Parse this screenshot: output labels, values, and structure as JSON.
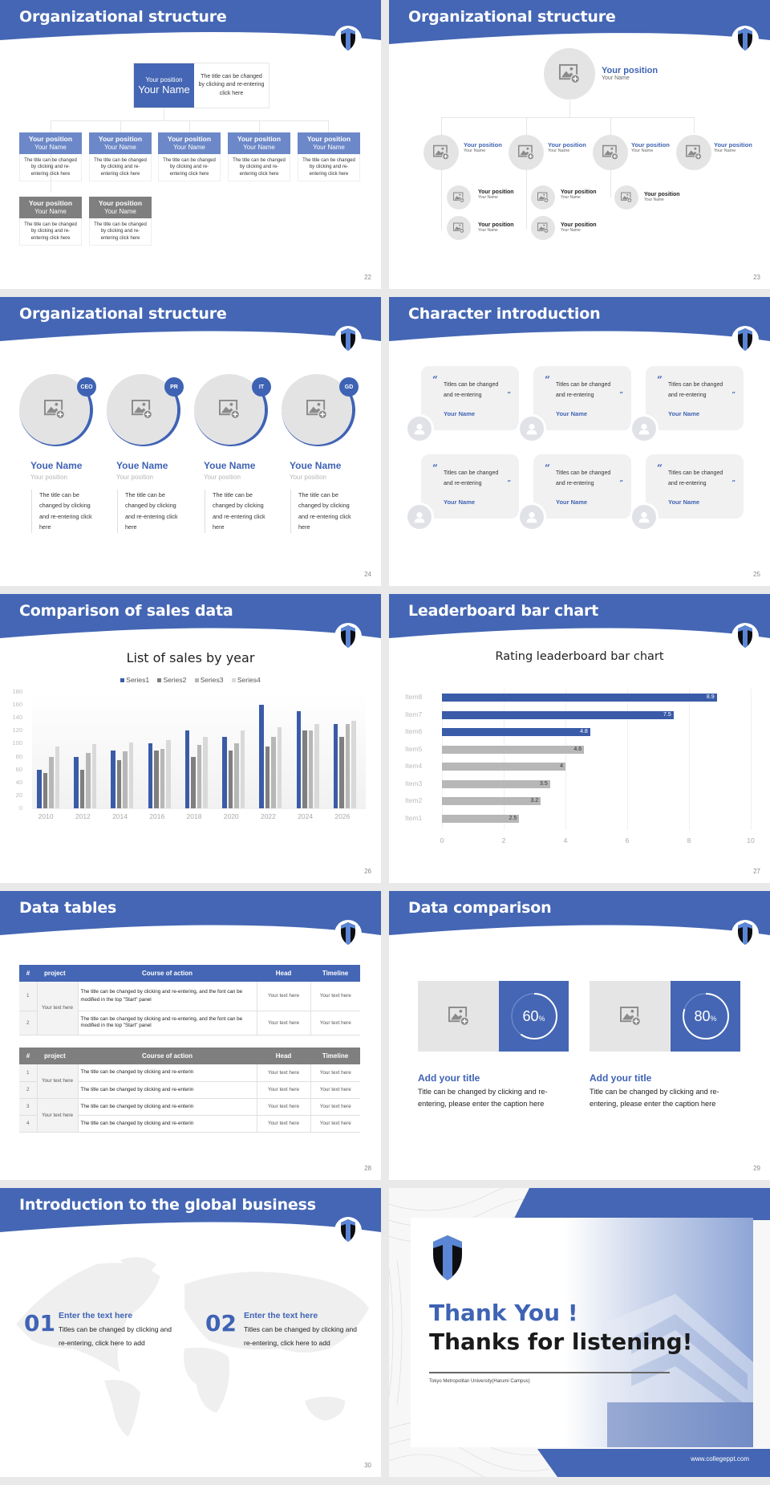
{
  "colors": {
    "accent": "#4466b4",
    "accent_dark": "#3f63b4",
    "gray_dark": "#7f7f7f",
    "gray_mid": "#b3b3b3",
    "gray_light": "#d9d9d9",
    "placeholder_bg": "#e4e4e5"
  },
  "slides": [
    {
      "page": "22",
      "title": "Organizational structure",
      "top": {
        "position": "Your position",
        "name": "Your Name",
        "desc": "The title can be changed by clicking and re-entering click here"
      },
      "boxes": [
        {
          "position": "Your position",
          "name": "Your Name",
          "desc": "The title can be changed by clicking and re-entering click here"
        },
        {
          "position": "Your position",
          "name": "Your Name",
          "desc": "The title can be changed by clicking and re-entering click here"
        },
        {
          "position": "Your position",
          "name": "Your Name",
          "desc": "The title can be changed by clicking and re-entering click here"
        },
        {
          "position": "Your position",
          "name": "Your Name",
          "desc": "The title can be changed by clicking and re-entering click here"
        },
        {
          "position": "Your position",
          "name": "Your Name",
          "desc": "The title can be changed by clicking and re-entering click here"
        },
        {
          "position": "Your position",
          "name": "Your Name",
          "desc": "The title can be changed by clicking and re-entering click here"
        },
        {
          "position": "Your position",
          "name": "Your Name",
          "desc": "The title can be changed by clicking and re-entering click here"
        }
      ]
    },
    {
      "page": "23",
      "title": "Organizational structure",
      "top": {
        "position": "Your position",
        "name": "Your Name"
      },
      "level2": [
        {
          "position": "Your position",
          "name": "Your Name"
        },
        {
          "position": "Your position",
          "name": "Your Name"
        },
        {
          "position": "Your position",
          "name": "Your Name"
        },
        {
          "position": "Your position",
          "name": "Your Name"
        }
      ],
      "level3": [
        {
          "position": "Your position",
          "name": "Your Name"
        },
        {
          "position": "Your position",
          "name": "Your Name"
        },
        {
          "position": "Your position",
          "name": "Your Name"
        },
        {
          "position": "Your position",
          "name": "Your Name"
        },
        {
          "position": "Your position",
          "name": "Your Name"
        }
      ]
    },
    {
      "page": "24",
      "title": "Organizational structure",
      "people": [
        {
          "badge": "CEO",
          "name": "Youe Name",
          "position": "Your position",
          "desc": "The title can be changed by clicking and re-entering click here"
        },
        {
          "badge": "PR",
          "name": "Youe Name",
          "position": "Your position",
          "desc": "The title can be changed by clicking and re-entering click here"
        },
        {
          "badge": "IT",
          "name": "Youe Name",
          "position": "Your position",
          "desc": "The title can be changed by clicking and re-entering click here"
        },
        {
          "badge": "GD",
          "name": "Youe Name",
          "position": "Your position",
          "desc": "The title can be changed by clicking and re-entering click here"
        }
      ]
    },
    {
      "page": "25",
      "title": "Character introduction",
      "cards": [
        {
          "open_quote": "“",
          "text": "Titles can be changed and re-entering",
          "close_quote": "”",
          "name": "Your Name"
        },
        {
          "open_quote": "“",
          "text": "Titles can be changed and re-entering",
          "close_quote": "”",
          "name": "Your Name"
        },
        {
          "open_quote": "“",
          "text": "Titles can be changed and re-entering",
          "close_quote": "”",
          "name": "Your Name"
        },
        {
          "open_quote": "“",
          "text": "Titles can be changed and re-entering",
          "close_quote": "”",
          "name": "Your Name"
        },
        {
          "open_quote": "“",
          "text": "Titles can be changed and re-entering",
          "close_quote": "”",
          "name": "Your Name"
        },
        {
          "open_quote": "“",
          "text": "Titles can be changed and re-entering",
          "close_quote": "”",
          "name": "Your Name"
        }
      ]
    },
    {
      "page": "26",
      "title": "Comparison of sales data",
      "chart_title": "List of sales by year",
      "legend": [
        "Series1",
        "Series2",
        "Series3",
        "Series4"
      ],
      "yticks": [
        "180",
        "160",
        "140",
        "120",
        "100",
        "80",
        "60",
        "40",
        "20",
        "0"
      ],
      "xticks": [
        "2010",
        "2012",
        "2014",
        "2016",
        "2018",
        "2020",
        "2022",
        "2024",
        "2026"
      ]
    },
    {
      "page": "27",
      "title": "Leaderboard bar chart",
      "chart_title": "Rating leaderboard bar chart",
      "items": [
        "Item8",
        "Item7",
        "Item6",
        "Item5",
        "Item4",
        "Item3",
        "Item2",
        "Item1"
      ],
      "values": [
        "8.9",
        "7.5",
        "4.8",
        "4.6",
        "4",
        "3.5",
        "3.2",
        "2.5"
      ],
      "xticks": [
        "0",
        "2",
        "4",
        "6",
        "8",
        "10"
      ]
    },
    {
      "page": "28",
      "title": "Data tables",
      "table1": {
        "headers": [
          "#",
          "project",
          "Course of action",
          "Head",
          "Timeline"
        ],
        "project": "Your text here",
        "rows": [
          {
            "num": "1",
            "action": "The title can be changed by clicking and re-entering, and the font can be modified in the top \"Start\" panel",
            "head": "Your text here",
            "timeline": "Your text here"
          },
          {
            "num": "2",
            "action": "The title can be changed by clicking and re-entering, and the font can be modified in the top \"Start\" panel",
            "head": "Your text here",
            "timeline": "Your text here"
          }
        ]
      },
      "table2": {
        "headers": [
          "#",
          "project",
          "Course of action",
          "Head",
          "Timeline"
        ],
        "projects": [
          "Your text here",
          "Your text here"
        ],
        "rows": [
          {
            "num": "1",
            "action": "The title can be changed by clicking and re-enterin",
            "head": "Your text here",
            "timeline": "Your text here"
          },
          {
            "num": "2",
            "action": "The title can be changed by clicking and re-enterin",
            "head": "Your text here",
            "timeline": "Your text here"
          },
          {
            "num": "3",
            "action": "The title can be changed by clicking and re-enterin",
            "head": "Your text here",
            "timeline": "Your text here"
          },
          {
            "num": "4",
            "action": "The title can be changed by clicking and re-enterin",
            "head": "Your text here",
            "timeline": "Your text here"
          }
        ]
      }
    },
    {
      "page": "29",
      "title": "Data comparison",
      "items": [
        {
          "percent": "60",
          "unit": "%",
          "title": "Add your title",
          "desc": "Title can be changed by clicking and re-entering, please enter the caption here"
        },
        {
          "percent": "80",
          "unit": "%",
          "title": "Add your title",
          "desc": "Title can be changed by clicking and re-entering, please enter the caption here"
        }
      ]
    },
    {
      "page": "30",
      "title": "Introduction to the global business",
      "items": [
        {
          "num": "01",
          "title": "Enter the text here",
          "desc": "Titles can be changed by clicking and re-entering, click here to add"
        },
        {
          "num": "02",
          "title": "Enter the text here",
          "desc": "Titles can be changed by clicking and re-entering, click here to add"
        }
      ]
    },
    {
      "title": "Thank You !",
      "subtitle": "Thanks for listening!",
      "university": "Tokyo Metropolitan University(Harumi Campus)",
      "website": "www.collegeppt.com"
    }
  ],
  "chart_data": [
    {
      "type": "bar",
      "title": "List of sales by year",
      "categories": [
        "2010",
        "2012",
        "2014",
        "2016",
        "2018",
        "2020",
        "2022",
        "2024",
        "2026"
      ],
      "series": [
        {
          "name": "Series1",
          "color": "#3a5ba8",
          "values": [
            60,
            80,
            90,
            100,
            120,
            110,
            160,
            150,
            130
          ]
        },
        {
          "name": "Series2",
          "color": "#7f7f7f",
          "values": [
            55,
            60,
            75,
            90,
            80,
            90,
            96,
            120,
            110
          ]
        },
        {
          "name": "Series3",
          "color": "#b7b7b7",
          "values": [
            80,
            86,
            88,
            92,
            98,
            100,
            110,
            120,
            130
          ]
        },
        {
          "name": "Series4",
          "color": "#d9d9d9",
          "values": [
            95,
            99,
            102,
            105,
            110,
            120,
            126,
            130,
            135
          ]
        }
      ],
      "xlabel": "",
      "ylabel": "",
      "ylim": [
        0,
        180
      ],
      "grid": true,
      "legend_position": "top"
    },
    {
      "type": "bar",
      "orientation": "horizontal",
      "title": "Rating leaderboard bar chart",
      "categories": [
        "Item8",
        "Item7",
        "Item6",
        "Item5",
        "Item4",
        "Item3",
        "Item2",
        "Item1"
      ],
      "values": [
        8.9,
        7.5,
        4.8,
        4.6,
        4,
        3.5,
        3.2,
        2.5
      ],
      "colors": [
        "#3a5ba8",
        "#3a5ba8",
        "#3a5ba8",
        "#b7b7b7",
        "#b7b7b7",
        "#b7b7b7",
        "#b7b7b7",
        "#b7b7b7"
      ],
      "xlim": [
        0,
        10
      ],
      "grid": true,
      "data_labels": true
    }
  ]
}
